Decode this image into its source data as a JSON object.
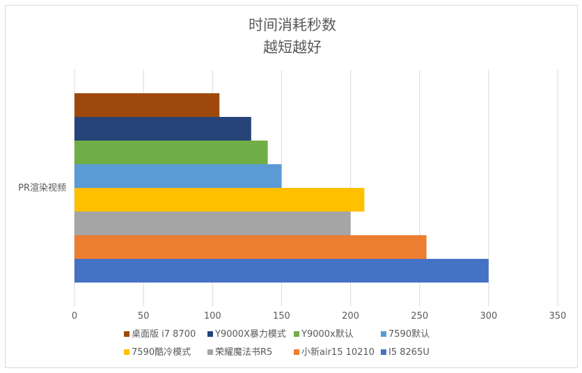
{
  "chart_data": {
    "type": "bar",
    "orientation": "horizontal",
    "title": "时间消耗秒数",
    "subtitle": "越短越好",
    "categories": [
      "PR渲染视频"
    ],
    "xlim": [
      0,
      350
    ],
    "xticks": [
      0,
      50,
      100,
      150,
      200,
      250,
      300,
      350
    ],
    "grid": true,
    "legend_position": "bottom",
    "series": [
      {
        "name": "桌面版 i7 8700",
        "values": [
          105
        ],
        "color": "#9E480E"
      },
      {
        "name": "Y9000X暴力模式",
        "values": [
          128
        ],
        "color": "#264478"
      },
      {
        "name": "Y9000x默认",
        "values": [
          140
        ],
        "color": "#70AD47"
      },
      {
        "name": "7590默认",
        "values": [
          150
        ],
        "color": "#5B9BD5"
      },
      {
        "name": "7590酷冷模式",
        "values": [
          210
        ],
        "color": "#FFC000"
      },
      {
        "name": "荣耀魔法书R5",
        "values": [
          200
        ],
        "color": "#A5A5A5"
      },
      {
        "name": "小新air15 10210",
        "values": [
          255
        ],
        "color": "#ED7D31"
      },
      {
        "name": "I5 8265U",
        "values": [
          300
        ],
        "color": "#4472C4"
      }
    ]
  }
}
